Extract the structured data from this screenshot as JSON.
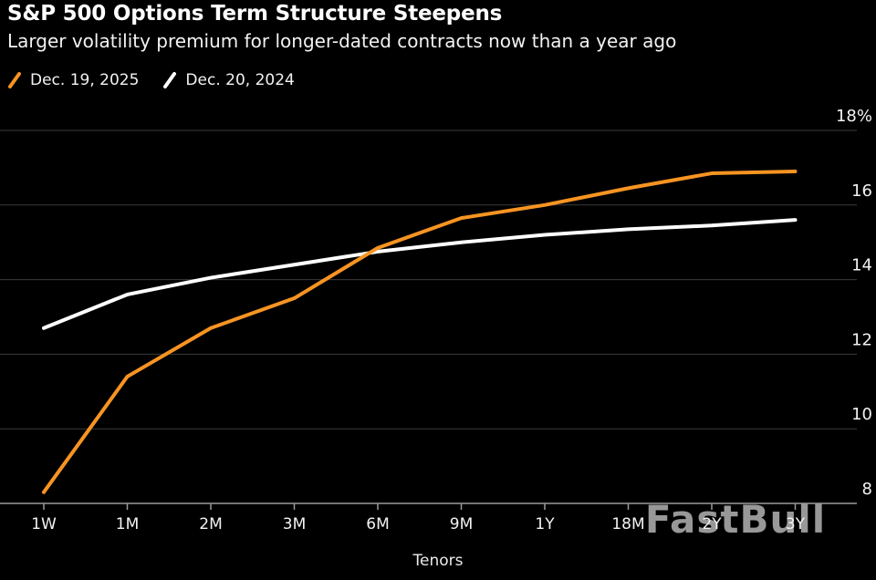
{
  "header": {
    "title": "S&P 500 Options Term Structure Steepens",
    "subtitle": "Larger volatility premium for longer-dated contracts now than a year ago"
  },
  "legend": {
    "items": [
      {
        "label": "Dec. 19, 2025",
        "color": "#f79422"
      },
      {
        "label": "Dec. 20, 2024",
        "color": "#ffffff"
      }
    ]
  },
  "watermark": {
    "text": "FastBull",
    "color": "#989898"
  },
  "chart_data": {
    "type": "line",
    "categories": [
      "1W",
      "1M",
      "2M",
      "3M",
      "6M",
      "9M",
      "1Y",
      "18M",
      "2Y",
      "3Y"
    ],
    "series": [
      {
        "name": "Dec. 19, 2025",
        "color": "#f79422",
        "values": [
          8.3,
          11.4,
          12.7,
          13.5,
          14.85,
          15.65,
          16.0,
          16.45,
          16.85,
          16.9
        ]
      },
      {
        "name": "Dec. 20, 2024",
        "color": "#ffffff",
        "values": [
          12.7,
          13.6,
          14.05,
          14.4,
          14.75,
          15.0,
          15.2,
          15.35,
          15.45,
          15.6
        ]
      }
    ],
    "title": "S&P 500 Options Term Structure Steepens",
    "subtitle": "Larger volatility premium for longer-dated contracts now than a year ago",
    "xlabel": "Tenors",
    "ylabel": "",
    "unit": "%",
    "ylim": [
      8,
      18
    ],
    "yticks": [
      8,
      10,
      12,
      14,
      16,
      18
    ],
    "ytick_labels": [
      "8",
      "10",
      "12",
      "14",
      "16",
      "18%"
    ],
    "grid": true,
    "legend_position": "top-left"
  },
  "colors": {
    "background": "#000000",
    "gridline": "#3c3c3c",
    "axis": "#9a9a9a",
    "tick_label": "#f2f2f2",
    "accent_orange": "#f79422"
  }
}
